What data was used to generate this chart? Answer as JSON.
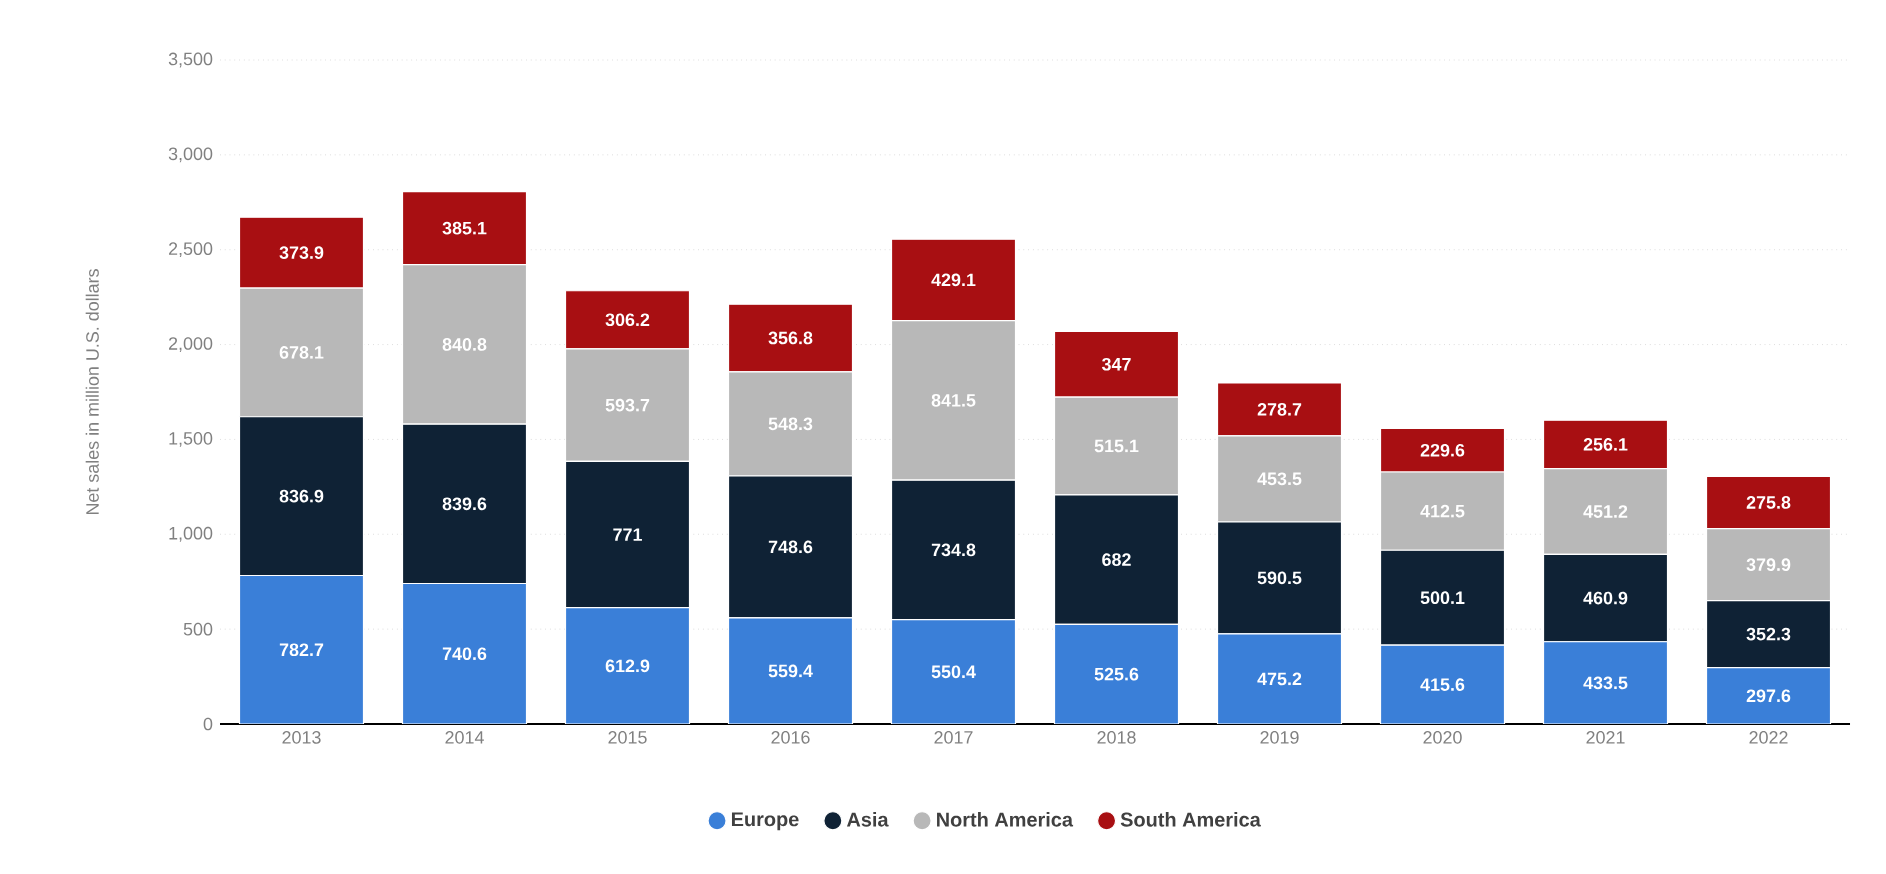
{
  "chart_data": {
    "type": "bar",
    "stacked": true,
    "ylabel": "Net sales in million U.S. dollars",
    "categories": [
      "2013",
      "2014",
      "2015",
      "2016",
      "2017",
      "2018",
      "2019",
      "2020",
      "2021",
      "2022"
    ],
    "series": [
      {
        "name": "Europe",
        "color": "#3a7fd8",
        "values": [
          782.7,
          740.6,
          612.9,
          559.4,
          550.4,
          525.6,
          475.2,
          415.6,
          433.5,
          297.6
        ]
      },
      {
        "name": "Asia",
        "color": "#0f2235",
        "values": [
          836.9,
          839.6,
          771,
          748.6,
          734.8,
          682,
          590.5,
          500.1,
          460.9,
          352.3
        ]
      },
      {
        "name": "North America",
        "color": "#b8b8b8",
        "values": [
          678.1,
          840.8,
          593.7,
          548.3,
          841.5,
          515.1,
          453.5,
          412.5,
          451.2,
          379.9
        ]
      },
      {
        "name": "South America",
        "color": "#a80f12",
        "values": [
          373.9,
          385.1,
          306.2,
          356.8,
          429.1,
          347,
          278.7,
          229.6,
          256.1,
          275.8
        ]
      }
    ],
    "ylim": [
      0,
      3500
    ],
    "yticks": [
      {
        "value": 0,
        "label": "0"
      },
      {
        "value": 500,
        "label": "500"
      },
      {
        "value": 1000,
        "label": "1,000"
      },
      {
        "value": 1500,
        "label": "1,500"
      },
      {
        "value": 2000,
        "label": "2,000"
      },
      {
        "value": 2500,
        "label": "2,500"
      },
      {
        "value": 3000,
        "label": "3,000"
      },
      {
        "value": 3500,
        "label": "3,500"
      }
    ],
    "grid": "y",
    "legend": "bottom",
    "data_labels": true
  }
}
